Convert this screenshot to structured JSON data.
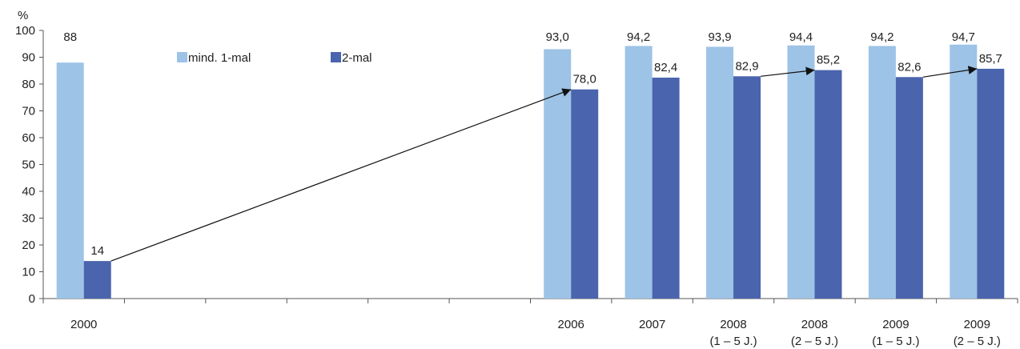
{
  "chart_data": {
    "type": "bar",
    "ylabel": "%",
    "ylim": [
      0,
      100
    ],
    "yticks": [
      "0",
      "10",
      "20",
      "30",
      "40",
      "50",
      "60",
      "70",
      "80",
      "90",
      "100"
    ],
    "grid": false,
    "legend_position": "top-left",
    "x_slots": 12,
    "categories": [
      {
        "slot": 0,
        "label": [
          "2000"
        ]
      },
      {
        "slot": 6,
        "label": [
          "2006"
        ]
      },
      {
        "slot": 7,
        "label": [
          "2007"
        ]
      },
      {
        "slot": 8,
        "label": [
          "2008",
          "(1 – 5 J.)"
        ]
      },
      {
        "slot": 9,
        "label": [
          "2008",
          "(2 – 5 J.)"
        ]
      },
      {
        "slot": 10,
        "label": [
          "2009",
          "(1 – 5 J.)"
        ]
      },
      {
        "slot": 11,
        "label": [
          "2009",
          "(2 – 5 J.)"
        ]
      }
    ],
    "series": [
      {
        "name": "mind. 1-mal",
        "color": "#9dc3e6",
        "values": [
          88,
          93.0,
          94.2,
          93.9,
          94.4,
          94.2,
          94.7
        ],
        "labels": [
          "88",
          "93,0",
          "94,2",
          "93,9",
          "94,4",
          "94,2",
          "94,7"
        ]
      },
      {
        "name": "2-mal",
        "color": "#4a64ad",
        "values": [
          14,
          78.0,
          82.4,
          82.9,
          85.2,
          82.6,
          85.7
        ],
        "labels": [
          "14",
          "78,0",
          "82,4",
          "82,9",
          "85,2",
          "82,6",
          "85,7"
        ]
      }
    ],
    "arrows": [
      {
        "series": 1,
        "from": 0,
        "to": 1
      },
      {
        "series": 1,
        "from": 3,
        "to": 4
      },
      {
        "series": 1,
        "from": 5,
        "to": 6
      }
    ]
  }
}
